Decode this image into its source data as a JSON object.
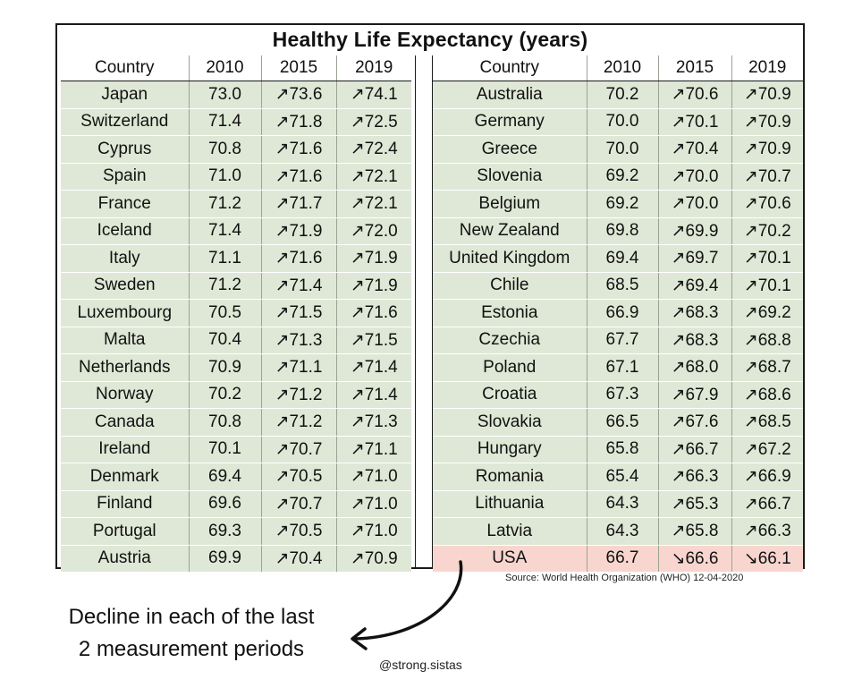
{
  "title": "Healthy Life Expectancy (years)",
  "headers": [
    "Country",
    "2010",
    "2015",
    "2019"
  ],
  "left_rows": [
    [
      "Japan",
      "73.0",
      "↗73.6",
      "↗74.1"
    ],
    [
      "Switzerland",
      "71.4",
      "↗71.8",
      "↗72.5"
    ],
    [
      "Cyprus",
      "70.8",
      "↗71.6",
      "↗72.4"
    ],
    [
      "Spain",
      "71.0",
      "↗71.6",
      "↗72.1"
    ],
    [
      "France",
      "71.2",
      "↗71.7",
      "↗72.1"
    ],
    [
      "Iceland",
      "71.4",
      "↗71.9",
      "↗72.0"
    ],
    [
      "Italy",
      "71.1",
      "↗71.6",
      "↗71.9"
    ],
    [
      "Sweden",
      "71.2",
      "↗71.4",
      "↗71.9"
    ],
    [
      "Luxembourg",
      "70.5",
      "↗71.5",
      "↗71.6"
    ],
    [
      "Malta",
      "70.4",
      "↗71.3",
      "↗71.5"
    ],
    [
      "Netherlands",
      "70.9",
      "↗71.1",
      "↗71.4"
    ],
    [
      "Norway",
      "70.2",
      "↗71.2",
      "↗71.4"
    ],
    [
      "Canada",
      "70.8",
      "↗71.2",
      "↗71.3"
    ],
    [
      "Ireland",
      "70.1",
      "↗70.7",
      "↗71.1"
    ],
    [
      "Denmark",
      "69.4",
      "↗70.5",
      "↗71.0"
    ],
    [
      "Finland",
      "69.6",
      "↗70.7",
      "↗71.0"
    ],
    [
      "Portugal",
      "69.3",
      "↗70.5",
      "↗71.0"
    ],
    [
      "Austria",
      "69.9",
      "↗70.4",
      "↗70.9"
    ]
  ],
  "right_rows": [
    [
      "Australia",
      "70.2",
      "↗70.6",
      "↗70.9"
    ],
    [
      "Germany",
      "70.0",
      "↗70.1",
      "↗70.9"
    ],
    [
      "Greece",
      "70.0",
      "↗70.4",
      "↗70.9"
    ],
    [
      "Slovenia",
      "69.2",
      "↗70.0",
      "↗70.7"
    ],
    [
      "Belgium",
      "69.2",
      "↗70.0",
      "↗70.6"
    ],
    [
      "New Zealand",
      "69.8",
      "↗69.9",
      "↗70.2"
    ],
    [
      "United Kingdom",
      "69.4",
      "↗69.7",
      "↗70.1"
    ],
    [
      "Chile",
      "68.5",
      "↗69.4",
      "↗70.1"
    ],
    [
      "Estonia",
      "66.9",
      "↗68.3",
      "↗69.2"
    ],
    [
      "Czechia",
      "67.7",
      "↗68.3",
      "↗68.8"
    ],
    [
      "Poland",
      "67.1",
      "↗68.0",
      "↗68.7"
    ],
    [
      "Croatia",
      "67.3",
      "↗67.9",
      "↗68.6"
    ],
    [
      "Slovakia",
      "66.5",
      "↗67.6",
      "↗68.5"
    ],
    [
      "Hungary",
      "65.8",
      "↗66.7",
      "↗67.2"
    ],
    [
      "Romania",
      "65.4",
      "↗66.3",
      "↗66.9"
    ],
    [
      "Lithuania",
      "64.3",
      "↗65.3",
      "↗66.7"
    ],
    [
      "Latvia",
      "64.3",
      "↗65.8",
      "↗66.3"
    ],
    [
      "USA",
      "66.7",
      "↘66.6",
      "↘66.1"
    ]
  ],
  "highlight_country": "USA",
  "colors": {
    "row_bg": "#dfe8d6",
    "highlight_bg": "#f8d6cf"
  },
  "source": "Source: World Health Organization (WHO) 12-04-2020",
  "note_line1": "Decline in each of the last",
  "note_line2": "2 measurement periods",
  "handle": "@strong.sistas"
}
